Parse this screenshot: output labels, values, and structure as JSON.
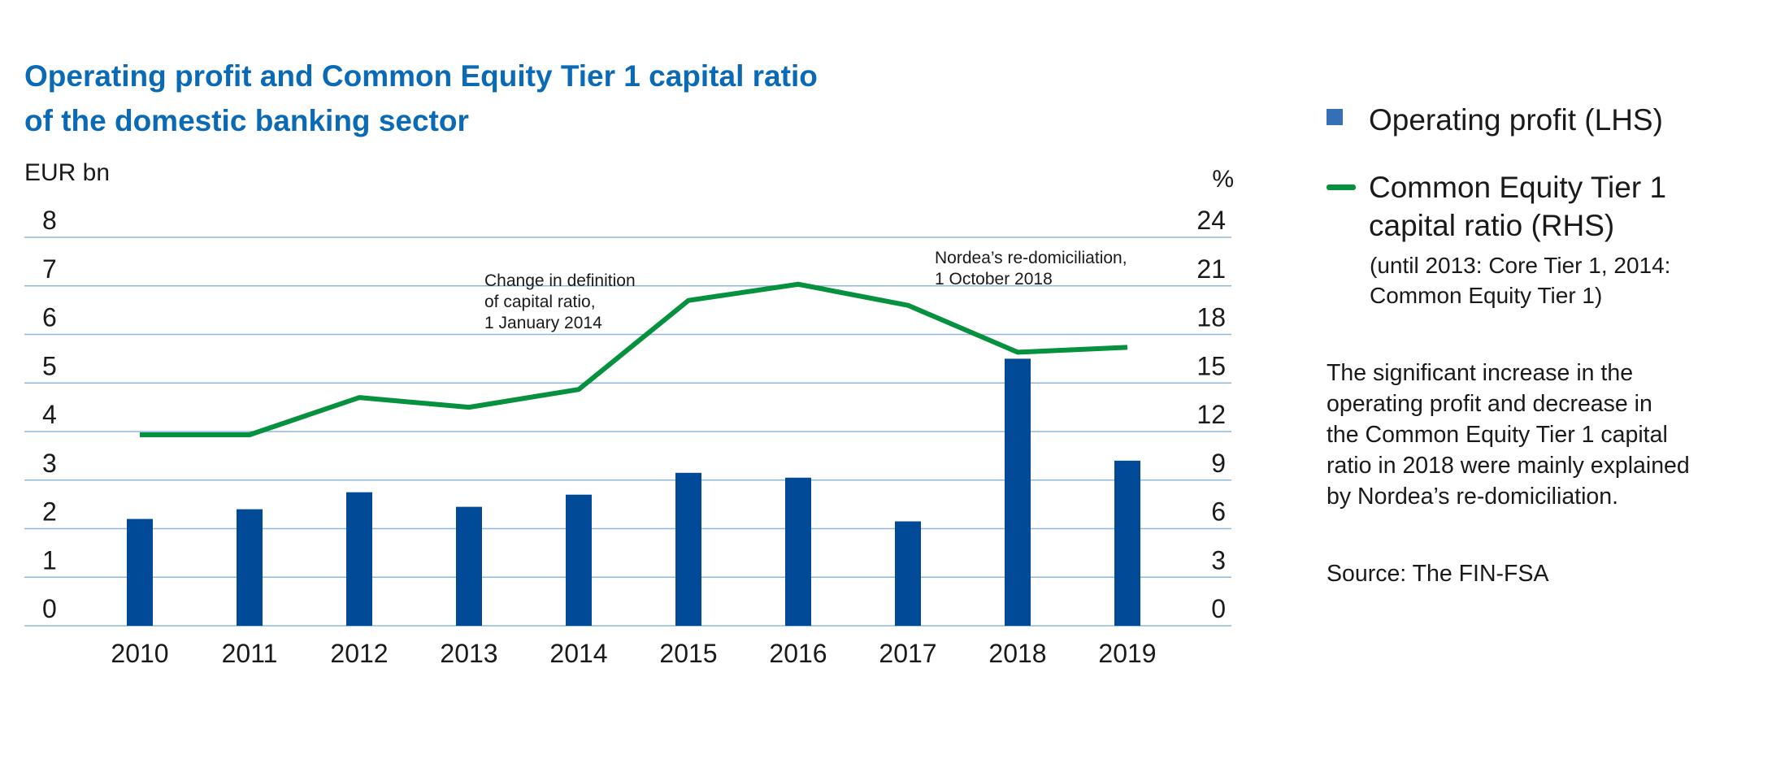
{
  "title_line1": "Operating profit and Common Equity Tier 1 capital ratio",
  "title_line2": "of the domestic banking sector",
  "legend": {
    "bar_label": "Operating profit (LHS)",
    "line_label_1": "Common Equity Tier 1",
    "line_label_2": "capital ratio (RHS)",
    "line_note_1": "(until 2013: Core Tier 1, 2014:",
    "line_note_2": "Common Equity Tier 1)"
  },
  "note_lines": [
    "The significant increase in the",
    "operating profit and decrease in",
    "the Common Equity Tier 1 capital",
    "ratio in 2018 were mainly explained",
    "by Nordea’s re-domiciliation."
  ],
  "source": "Source: The FIN-FSA",
  "colors": {
    "bar": "#004a97",
    "line": "#05913d",
    "grid": "#8fb8db",
    "title": "#0b6ab5"
  },
  "chart_data": {
    "type": "bar+line",
    "categories": [
      "2010",
      "2011",
      "2012",
      "2013",
      "2014",
      "2015",
      "2016",
      "2017",
      "2018",
      "2019"
    ],
    "series": [
      {
        "name": "Operating profit (LHS)",
        "type": "bar",
        "axis": "left",
        "values": [
          2.2,
          2.4,
          2.75,
          2.45,
          2.7,
          3.15,
          3.05,
          2.15,
          5.5,
          3.4
        ]
      },
      {
        "name": "Common Equity Tier 1 capital ratio (RHS)",
        "type": "line",
        "axis": "right",
        "values": [
          11.8,
          11.8,
          14.1,
          13.5,
          14.6,
          20.1,
          21.1,
          19.8,
          16.9,
          17.2
        ]
      }
    ],
    "left_axis": {
      "label": "EUR bn",
      "min": 0,
      "max": 8,
      "ticks": [
        "0",
        "1",
        "2",
        "3",
        "4",
        "5",
        "6",
        "7",
        "8"
      ]
    },
    "right_axis": {
      "label": "%",
      "min": 0,
      "max": 24,
      "ticks": [
        "0",
        "3",
        "6",
        "9",
        "12",
        "15",
        "18",
        "21",
        "24"
      ]
    },
    "annotations": [
      {
        "year": "2014",
        "lines": [
          "Change in definition",
          "of capital ratio,",
          "1 January 2014"
        ]
      },
      {
        "year": "2018",
        "lines": [
          "Nordea’s re-domiciliation,",
          "1 October 2018"
        ]
      }
    ],
    "grid": true
  }
}
